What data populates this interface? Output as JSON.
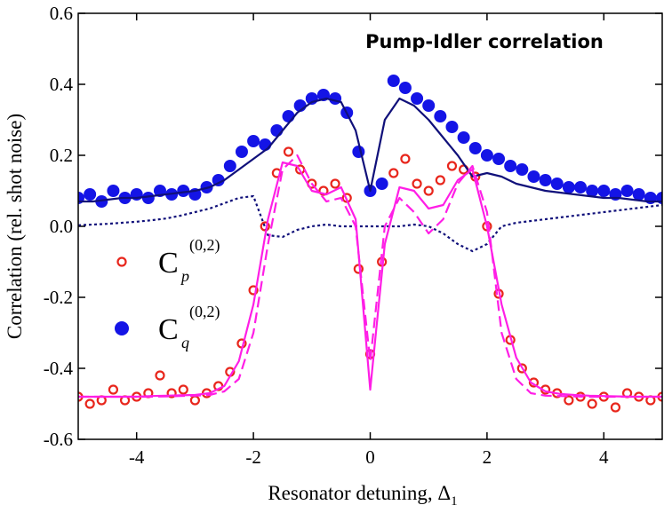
{
  "chart_data": {
    "type": "scatter",
    "title": "Pump-Idler correlation",
    "x_label": "Resonator detuning, Δ",
    "x_label_subscript": "1",
    "y_label": "Correlation (rel. shot noise)",
    "xlim": [
      -5,
      5
    ],
    "ylim": [
      -0.6,
      0.6
    ],
    "xticks": [
      -4,
      -2,
      0,
      2,
      4
    ],
    "yticks": [
      -0.6,
      -0.4,
      -0.2,
      {
        "value": 0,
        "label": "0.0"
      },
      0.2,
      0.4,
      0.6
    ],
    "series": [
      {
        "name": "C",
        "subscript": "p",
        "superscript": "(0,2)",
        "kind": "scatter",
        "marker": "open",
        "color": "#e8261c",
        "x": [
          -5,
          -4.8,
          -4.6,
          -4.4,
          -4.2,
          -4,
          -3.8,
          -3.6,
          -3.4,
          -3.2,
          -3,
          -2.8,
          -2.6,
          -2.4,
          -2.2,
          -2,
          -1.8,
          -1.6,
          -1.4,
          -1.2,
          -1,
          -0.8,
          -0.6,
          -0.4,
          -0.2,
          0,
          0.2,
          0.4,
          0.6,
          0.8,
          1,
          1.2,
          1.4,
          1.6,
          1.8,
          2,
          2.2,
          2.4,
          2.6,
          2.8,
          3,
          3.2,
          3.4,
          3.6,
          3.8,
          4,
          4.2,
          4.4,
          4.6,
          4.8,
          5
        ],
        "values": [
          -0.48,
          -0.5,
          -0.49,
          -0.46,
          -0.49,
          -0.48,
          -0.47,
          -0.42,
          -0.47,
          -0.46,
          -0.49,
          -0.47,
          -0.45,
          -0.41,
          -0.33,
          -0.18,
          0,
          0.15,
          0.21,
          0.16,
          0.12,
          0.1,
          0.12,
          0.08,
          -0.12,
          -0.36,
          -0.1,
          0.15,
          0.19,
          0.12,
          0.1,
          0.13,
          0.17,
          0.16,
          0.14,
          0,
          -0.19,
          -0.32,
          -0.4,
          -0.44,
          -0.46,
          -0.47,
          -0.49,
          -0.48,
          -0.5,
          -0.48,
          -0.51,
          -0.47,
          -0.48,
          -0.49,
          -0.48
        ]
      },
      {
        "name": "C",
        "subscript": "q",
        "superscript": "(0,2)",
        "kind": "scatter",
        "marker": "filled",
        "color": "#1414e6",
        "x": [
          -5,
          -4.8,
          -4.6,
          -4.4,
          -4.2,
          -4,
          -3.8,
          -3.6,
          -3.4,
          -3.2,
          -3,
          -2.8,
          -2.6,
          -2.4,
          -2.2,
          -2,
          -1.8,
          -1.6,
          -1.4,
          -1.2,
          -1,
          -0.8,
          -0.6,
          -0.4,
          -0.2,
          0,
          0.2,
          0.4,
          0.6,
          0.8,
          1,
          1.2,
          1.4,
          1.6,
          1.8,
          2,
          2.2,
          2.4,
          2.6,
          2.8,
          3,
          3.2,
          3.4,
          3.6,
          3.8,
          4,
          4.2,
          4.4,
          4.6,
          4.8,
          5
        ],
        "values": [
          0.08,
          0.09,
          0.07,
          0.1,
          0.08,
          0.09,
          0.08,
          0.1,
          0.09,
          0.1,
          0.09,
          0.11,
          0.13,
          0.17,
          0.21,
          0.24,
          0.23,
          0.27,
          0.31,
          0.34,
          0.36,
          0.37,
          0.36,
          0.32,
          0.21,
          0.1,
          0.12,
          0.41,
          0.39,
          0.36,
          0.34,
          0.31,
          0.28,
          0.25,
          0.22,
          0.2,
          0.19,
          0.17,
          0.16,
          0.14,
          0.13,
          0.12,
          0.11,
          0.11,
          0.1,
          0.1,
          0.09,
          0.1,
          0.09,
          0.08,
          0.08
        ]
      },
      {
        "kind": "line",
        "style": "solid",
        "color": "#10107a",
        "x": [
          -5,
          -4.75,
          -4.5,
          -4.25,
          -4,
          -3.75,
          -3.5,
          -3.25,
          -3,
          -2.75,
          -2.5,
          -2.25,
          -2,
          -1.75,
          -1.5,
          -1.25,
          -1,
          -0.75,
          -0.5,
          -0.25,
          0,
          0.25,
          0.5,
          0.75,
          1,
          1.25,
          1.5,
          1.75,
          2,
          2.25,
          2.5,
          2.75,
          3,
          3.25,
          3.5,
          3.75,
          4,
          4.25,
          4.5,
          4.75,
          5
        ],
        "values": [
          0.07,
          0.07,
          0.075,
          0.08,
          0.08,
          0.085,
          0.09,
          0.095,
          0.1,
          0.11,
          0.13,
          0.16,
          0.19,
          0.22,
          0.27,
          0.32,
          0.35,
          0.36,
          0.35,
          0.27,
          0.1,
          0.3,
          0.36,
          0.34,
          0.3,
          0.25,
          0.2,
          0.14,
          0.15,
          0.14,
          0.12,
          0.11,
          0.1,
          0.095,
          0.09,
          0.085,
          0.08,
          0.08,
          0.075,
          0.07,
          0.07
        ]
      },
      {
        "kind": "line",
        "style": "dotted",
        "color": "#10107a",
        "x": [
          -5,
          -4.75,
          -4.5,
          -4.25,
          -4,
          -3.75,
          -3.5,
          -3.25,
          -3,
          -2.75,
          -2.5,
          -2.25,
          -2,
          -1.75,
          -1.5,
          -1.25,
          -1,
          -0.75,
          -0.5,
          -0.25,
          0,
          0.25,
          0.5,
          0.75,
          1,
          1.25,
          1.5,
          1.75,
          2,
          2.25,
          2.5,
          2.75,
          3,
          3.25,
          3.5,
          3.75,
          4,
          4.25,
          4.5,
          4.75,
          5
        ],
        "values": [
          0.003,
          0.005,
          0.007,
          0.01,
          0.013,
          0.017,
          0.022,
          0.03,
          0.04,
          0.05,
          0.065,
          0.08,
          0.085,
          -0.025,
          -0.03,
          -0.01,
          0.0,
          0.005,
          0.0,
          0.0,
          0.0,
          0.0,
          0.0,
          0.005,
          0.0,
          -0.02,
          -0.05,
          -0.07,
          -0.05,
          0.0,
          0.01,
          0.015,
          0.02,
          0.025,
          0.03,
          0.035,
          0.04,
          0.045,
          0.05,
          0.055,
          0.06
        ]
      },
      {
        "kind": "line",
        "style": "solid",
        "color": "#ff1ee6",
        "x": [
          -5,
          -4.75,
          -4.5,
          -4.25,
          -4,
          -3.75,
          -3.5,
          -3.25,
          -3,
          -2.75,
          -2.5,
          -2.25,
          -2,
          -1.75,
          -1.5,
          -1.25,
          -1,
          -0.75,
          -0.5,
          -0.25,
          0,
          0.25,
          0.5,
          0.75,
          1,
          1.25,
          1.5,
          1.75,
          2,
          2.25,
          2.5,
          2.75,
          3,
          3.25,
          3.5,
          3.75,
          4,
          4.25,
          4.5,
          4.75,
          5
        ],
        "values": [
          -0.48,
          -0.48,
          -0.48,
          -0.48,
          -0.48,
          -0.478,
          -0.477,
          -0.476,
          -0.475,
          -0.47,
          -0.45,
          -0.38,
          -0.22,
          0.02,
          0.18,
          0.17,
          0.1,
          0.09,
          0.11,
          0.02,
          -0.46,
          -0.05,
          0.11,
          0.1,
          0.05,
          0.06,
          0.13,
          0.16,
          0.0,
          -0.22,
          -0.37,
          -0.44,
          -0.465,
          -0.472,
          -0.475,
          -0.477,
          -0.478,
          -0.479,
          -0.48,
          -0.48,
          -0.48
        ]
      },
      {
        "kind": "line",
        "style": "dashed",
        "color": "#ff1ee6",
        "x": [
          -5,
          -4.75,
          -4.5,
          -4.25,
          -4,
          -3.75,
          -3.5,
          -3.25,
          -3,
          -2.75,
          -2.5,
          -2.25,
          -2,
          -1.75,
          -1.5,
          -1.25,
          -1,
          -0.75,
          -0.5,
          -0.25,
          0,
          0.25,
          0.5,
          0.75,
          1,
          1.25,
          1.5,
          1.75,
          2,
          2.25,
          2.5,
          2.75,
          3,
          3.25,
          3.5,
          3.75,
          4,
          4.25,
          4.5,
          4.75,
          5
        ],
        "values": [
          -0.48,
          -0.48,
          -0.48,
          -0.48,
          -0.48,
          -0.48,
          -0.479,
          -0.478,
          -0.477,
          -0.475,
          -0.465,
          -0.43,
          -0.3,
          -0.05,
          0.16,
          0.2,
          0.12,
          0.07,
          0.08,
          0.0,
          -0.38,
          0.0,
          0.08,
          0.04,
          -0.02,
          0.02,
          0.12,
          0.17,
          0.04,
          -0.3,
          -0.43,
          -0.47,
          -0.477,
          -0.478,
          -0.479,
          -0.48,
          -0.48,
          -0.48,
          -0.48,
          -0.48,
          -0.48
        ]
      }
    ]
  }
}
